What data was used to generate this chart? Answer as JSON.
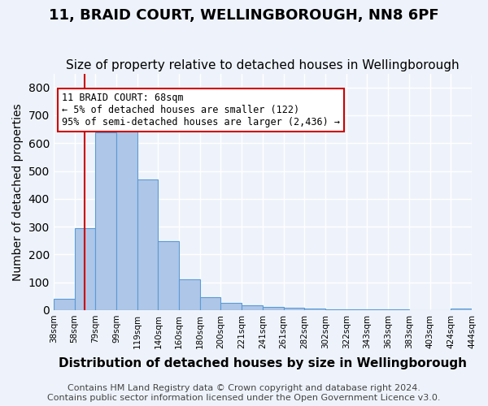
{
  "title1": "11, BRAID COURT, WELLINGBOROUGH, NN8 6PF",
  "title2": "Size of property relative to detached houses in Wellingborough",
  "xlabel": "Distribution of detached houses by size in Wellingborough",
  "ylabel": "Number of detached properties",
  "footer": "Contains HM Land Registry data © Crown copyright and database right 2024.\nContains public sector information licensed under the Open Government Licence v3.0.",
  "bins": [
    "38sqm",
    "58sqm",
    "79sqm",
    "99sqm",
    "119sqm",
    "140sqm",
    "160sqm",
    "180sqm",
    "200sqm",
    "221sqm",
    "241sqm",
    "261sqm",
    "282sqm",
    "302sqm",
    "322sqm",
    "343sqm",
    "363sqm",
    "383sqm",
    "403sqm",
    "424sqm",
    "444sqm"
  ],
  "values": [
    40,
    295,
    640,
    650,
    468,
    249,
    110,
    45,
    25,
    18,
    12,
    8,
    5,
    4,
    3,
    2,
    2,
    1,
    1,
    5
  ],
  "bar_color": "#aec6e8",
  "bar_edge_color": "#5b9bd5",
  "property_line_x": 1.5,
  "property_sqm": 68,
  "annotation_text": "11 BRAID COURT: 68sqm\n← 5% of detached houses are smaller (122)\n95% of semi-detached houses are larger (2,436) →",
  "annotation_box_color": "#ffffff",
  "annotation_box_edge": "#cc0000",
  "vline_color": "#cc0000",
  "ylim": [
    0,
    850
  ],
  "yticks": [
    0,
    100,
    200,
    300,
    400,
    500,
    600,
    700,
    800
  ],
  "bg_color": "#eef3fb",
  "plot_bg_color": "#eef3fb",
  "grid_color": "#ffffff",
  "title1_fontsize": 13,
  "title2_fontsize": 11,
  "xlabel_fontsize": 11,
  "ylabel_fontsize": 10,
  "footer_fontsize": 8
}
